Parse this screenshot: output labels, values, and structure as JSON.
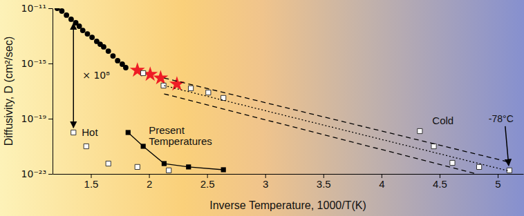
{
  "chart_data": {
    "type": "scatter",
    "x_label": "Inverse Temperature, 1000/T(K)",
    "y_label": "Diffusivity, D (cm²/sec)",
    "log": "y",
    "xlim": [
      1.17,
      5.22
    ],
    "ylim": [
      1e-23,
      1e-11
    ],
    "xticks": [
      1.5,
      2,
      2.5,
      3,
      3.5,
      4,
      4.5,
      5
    ],
    "yticks": [
      {
        "value": 1e-11,
        "label": "10⁻¹¹"
      },
      {
        "value": 1e-15,
        "label": "10⁻¹⁵"
      },
      {
        "value": 1e-19,
        "label": "10⁻¹⁹"
      },
      {
        "value": 1e-23,
        "label": "10⁻²³"
      }
    ],
    "annotations": [
      "× 10⁸",
      "-78°C"
    ],
    "series": [
      {
        "type": "scatter",
        "marker": "circle",
        "color": "#000000",
        "x": [
          1.21,
          1.25,
          1.29,
          1.33,
          1.37,
          1.4,
          1.43,
          1.47,
          1.51,
          1.55,
          1.58,
          1.61,
          1.65,
          1.69,
          1.73,
          1.77,
          1.8
        ],
        "values": [
          1e-11,
          6.3e-12,
          3.2e-12,
          1.6e-12,
          8.9e-13,
          5e-13,
          2.5e-13,
          1.4e-13,
          7.9e-14,
          4e-14,
          2.5e-14,
          1.6e-14,
          7.9e-15,
          3.5e-15,
          1.6e-15,
          8.9e-16,
          5e-16
        ]
      },
      {
        "type": "scatter",
        "marker": "star",
        "color": "#ee1c25",
        "x": [
          1.9,
          2.01,
          2.1,
          2.24
        ],
        "values": [
          3.2e-16,
          1.6e-16,
          8.9e-17,
          3.2e-17
        ]
      },
      {
        "type": "scatter",
        "marker": "square-open",
        "color": "#333333",
        "x": [
          1.95,
          2.125,
          2.36,
          2.51,
          2.64
        ],
        "values": [
          2e-16,
          2.5e-17,
          1.6e-17,
          7.9e-18,
          3.2e-18
        ]
      },
      {
        "name": "Cold",
        "type": "scatter",
        "marker": "square-open",
        "color": "#333333",
        "x": [
          4.33,
          4.45,
          4.61,
          4.84,
          5.1
        ],
        "values": [
          1.26e-20,
          1e-21,
          6.3e-23,
          3.2e-23,
          1.8e-23
        ]
      },
      {
        "name": "Hot",
        "type": "scatter",
        "marker": "square-open",
        "color": "#333333",
        "x": [
          1.35,
          1.46,
          1.65,
          1.9,
          2.17
        ],
        "values": [
          1e-20,
          1e-21,
          5.6e-23,
          3.2e-23,
          1.8e-23
        ]
      },
      {
        "name": "Present Temperatures",
        "type": "line",
        "marker": "square",
        "line_style": "solid",
        "color": "#000000",
        "x": [
          1.82,
          1.95,
          2.13,
          2.34,
          2.64
        ],
        "values": [
          1e-20,
          1e-21,
          5.6e-23,
          3.2e-23,
          2e-23
        ]
      },
      {
        "type": "line",
        "line_style": "dashed",
        "color": "#000000",
        "x": [
          2.13,
          5.1
        ],
        "values": [
          8.9e-17,
          7.1e-23
        ]
      },
      {
        "type": "line",
        "line_style": "dashed",
        "color": "#000000",
        "x": [
          2.13,
          4.82
        ],
        "values": [
          6.3e-18,
          1e-23
        ]
      },
      {
        "type": "line",
        "line_style": "dotted",
        "color": "#000000",
        "x": [
          2.13,
          5.1
        ],
        "values": [
          2.5e-17,
          1.6e-23
        ]
      }
    ]
  }
}
